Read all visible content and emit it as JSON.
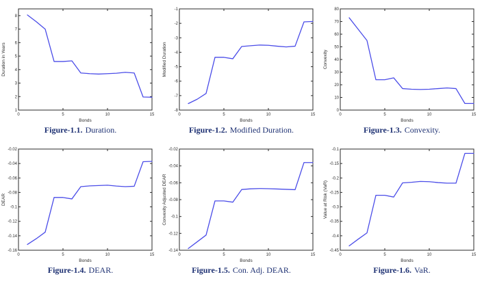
{
  "page": {
    "background": "#ffffff"
  },
  "styles": {
    "line_color": "#4a4cе8",
    "series_color": "#4a4ce8",
    "axis_color": "#2a2a2a",
    "tick_text_color": "#2b2b2b",
    "caption_color": "#1e3173"
  },
  "chart_data": [
    {
      "type": "line",
      "caption_label": "Figure-1.1.",
      "caption_text": "Duration.",
      "xlabel": "Bonds",
      "ylabel": "Duration in Years",
      "x": [
        1,
        2,
        3,
        4,
        5,
        6,
        7,
        8,
        9,
        10,
        11,
        12,
        13,
        14,
        15
      ],
      "y": [
        8.05,
        7.55,
        7.0,
        4.6,
        4.6,
        4.65,
        3.75,
        3.7,
        3.67,
        3.7,
        3.73,
        3.8,
        3.75,
        1.97,
        1.95
      ],
      "xlim": [
        0,
        15
      ],
      "ylim": [
        1,
        8.5
      ],
      "xticks": [
        0,
        5,
        10,
        15
      ],
      "xtick_labels": [
        "0",
        "5",
        "10",
        "15"
      ],
      "yticks": [
        1,
        2,
        3,
        4,
        5,
        6,
        7,
        8
      ],
      "ytick_labels": [
        "1",
        "2",
        "3",
        "4",
        "5",
        "6",
        "7",
        "8"
      ],
      "grid": false,
      "legend": null
    },
    {
      "type": "line",
      "caption_label": "Figure-1.2.",
      "caption_text": "Modified Duration.",
      "xlabel": "Bonds",
      "ylabel": "Modified Duration",
      "x": [
        1,
        2,
        3,
        4,
        5,
        6,
        7,
        8,
        9,
        10,
        11,
        12,
        13,
        14,
        15
      ],
      "y": [
        -7.55,
        -7.25,
        -6.85,
        -4.35,
        -4.35,
        -4.45,
        -3.6,
        -3.55,
        -3.5,
        -3.52,
        -3.58,
        -3.63,
        -3.58,
        -1.9,
        -1.87
      ],
      "xlim": [
        0,
        15
      ],
      "ylim": [
        -8,
        -1
      ],
      "xticks": [
        0,
        5,
        10,
        15
      ],
      "xtick_labels": [
        "0",
        "5",
        "10",
        "15"
      ],
      "yticks": [
        -8,
        -7,
        -6,
        -5,
        -4,
        -3,
        -2,
        -1
      ],
      "ytick_labels": [
        "-8",
        "-7",
        "-6",
        "-5",
        "-4",
        "-3",
        "-2",
        "-1"
      ],
      "grid": false,
      "legend": null
    },
    {
      "type": "line",
      "caption_label": "Figure-1.3.",
      "caption_text": "Convexity.",
      "xlabel": "Bonds",
      "ylabel": "Convexity",
      "x": [
        1,
        2,
        3,
        4,
        5,
        6,
        7,
        8,
        9,
        10,
        11,
        12,
        13,
        14,
        15
      ],
      "y": [
        73,
        64,
        55,
        24,
        24,
        25.5,
        17,
        16.5,
        16.3,
        16.5,
        17,
        17.5,
        17,
        5.2,
        5.2
      ],
      "xlim": [
        0,
        15
      ],
      "ylim": [
        0,
        80
      ],
      "xticks": [
        0,
        5,
        10,
        15
      ],
      "xtick_labels": [
        "0",
        "5",
        "10",
        "15"
      ],
      "yticks": [
        0,
        10,
        20,
        30,
        40,
        50,
        60,
        70,
        80
      ],
      "ytick_labels": [
        "0",
        "10",
        "20",
        "30",
        "40",
        "50",
        "60",
        "70",
        "80"
      ],
      "grid": false,
      "legend": null
    },
    {
      "type": "line",
      "caption_label": "Figure-1.4.",
      "caption_text": "DEAR.",
      "xlabel": "Bonds",
      "ylabel": "DEAR",
      "x": [
        1,
        2,
        3,
        4,
        5,
        6,
        7,
        8,
        9,
        10,
        11,
        12,
        13,
        14,
        15
      ],
      "y": [
        -0.152,
        -0.144,
        -0.135,
        -0.087,
        -0.087,
        -0.089,
        -0.072,
        -0.071,
        -0.0705,
        -0.07,
        -0.0712,
        -0.072,
        -0.0715,
        -0.0375,
        -0.037
      ],
      "xlim": [
        0,
        15
      ],
      "ylim": [
        -0.16,
        -0.02
      ],
      "xticks": [
        0,
        5,
        10,
        15
      ],
      "xtick_labels": [
        "0",
        "5",
        "10",
        "15"
      ],
      "yticks": [
        -0.16,
        -0.14,
        -0.12,
        -0.1,
        -0.08,
        -0.06,
        -0.04,
        -0.02
      ],
      "ytick_labels": [
        "-0.16",
        "-0.14",
        "-0.12",
        "-0.1",
        "-0.08",
        "-0.06",
        "-0.04",
        "-0.02"
      ],
      "grid": false,
      "legend": null
    },
    {
      "type": "line",
      "caption_label": "Figure-1.5.",
      "caption_text": "Con. Adj. DEAR.",
      "xlabel": "Bonds",
      "ylabel": "Convexity Adjusted DEAR",
      "x": [
        1,
        2,
        3,
        4,
        5,
        6,
        7,
        8,
        9,
        10,
        11,
        12,
        13,
        14,
        15
      ],
      "y": [
        -0.138,
        -0.13,
        -0.122,
        -0.0815,
        -0.0815,
        -0.083,
        -0.068,
        -0.0672,
        -0.0668,
        -0.067,
        -0.0674,
        -0.0678,
        -0.0682,
        -0.036,
        -0.036
      ],
      "xlim": [
        0,
        15
      ],
      "ylim": [
        -0.14,
        -0.02
      ],
      "xticks": [
        0,
        5,
        10,
        15
      ],
      "xtick_labels": [
        "0",
        "5",
        "10",
        "15"
      ],
      "yticks": [
        -0.14,
        -0.12,
        -0.1,
        -0.08,
        -0.06,
        -0.04,
        -0.02
      ],
      "ytick_labels": [
        "-0.14",
        "-0.12",
        "-0.1",
        "-0.08",
        "-0.06",
        "-0.04",
        "-0.02"
      ],
      "grid": false,
      "legend": null
    },
    {
      "type": "line",
      "caption_label": "Figure-1.6.",
      "caption_text": "VaR.",
      "xlabel": "Bonds",
      "ylabel": "Value at Risk (VaR)",
      "x": [
        1,
        2,
        3,
        4,
        5,
        6,
        7,
        8,
        9,
        10,
        11,
        12,
        13,
        14,
        15
      ],
      "y": [
        -0.435,
        -0.412,
        -0.39,
        -0.26,
        -0.26,
        -0.266,
        -0.217,
        -0.215,
        -0.212,
        -0.213,
        -0.216,
        -0.218,
        -0.218,
        -0.115,
        -0.115
      ],
      "xlim": [
        0,
        15
      ],
      "ylim": [
        -0.45,
        -0.1
      ],
      "xticks": [
        0,
        5,
        10,
        15
      ],
      "xtick_labels": [
        "0",
        "5",
        "10",
        "15"
      ],
      "yticks": [
        -0.45,
        -0.4,
        -0.35,
        -0.3,
        -0.25,
        -0.2,
        -0.15,
        -0.1
      ],
      "ytick_labels": [
        "-0.45",
        "-0.4",
        "-0.35",
        "-0.3",
        "-0.25",
        "-0.2",
        "-0.15",
        "-0.1"
      ],
      "grid": false,
      "legend": null
    }
  ]
}
